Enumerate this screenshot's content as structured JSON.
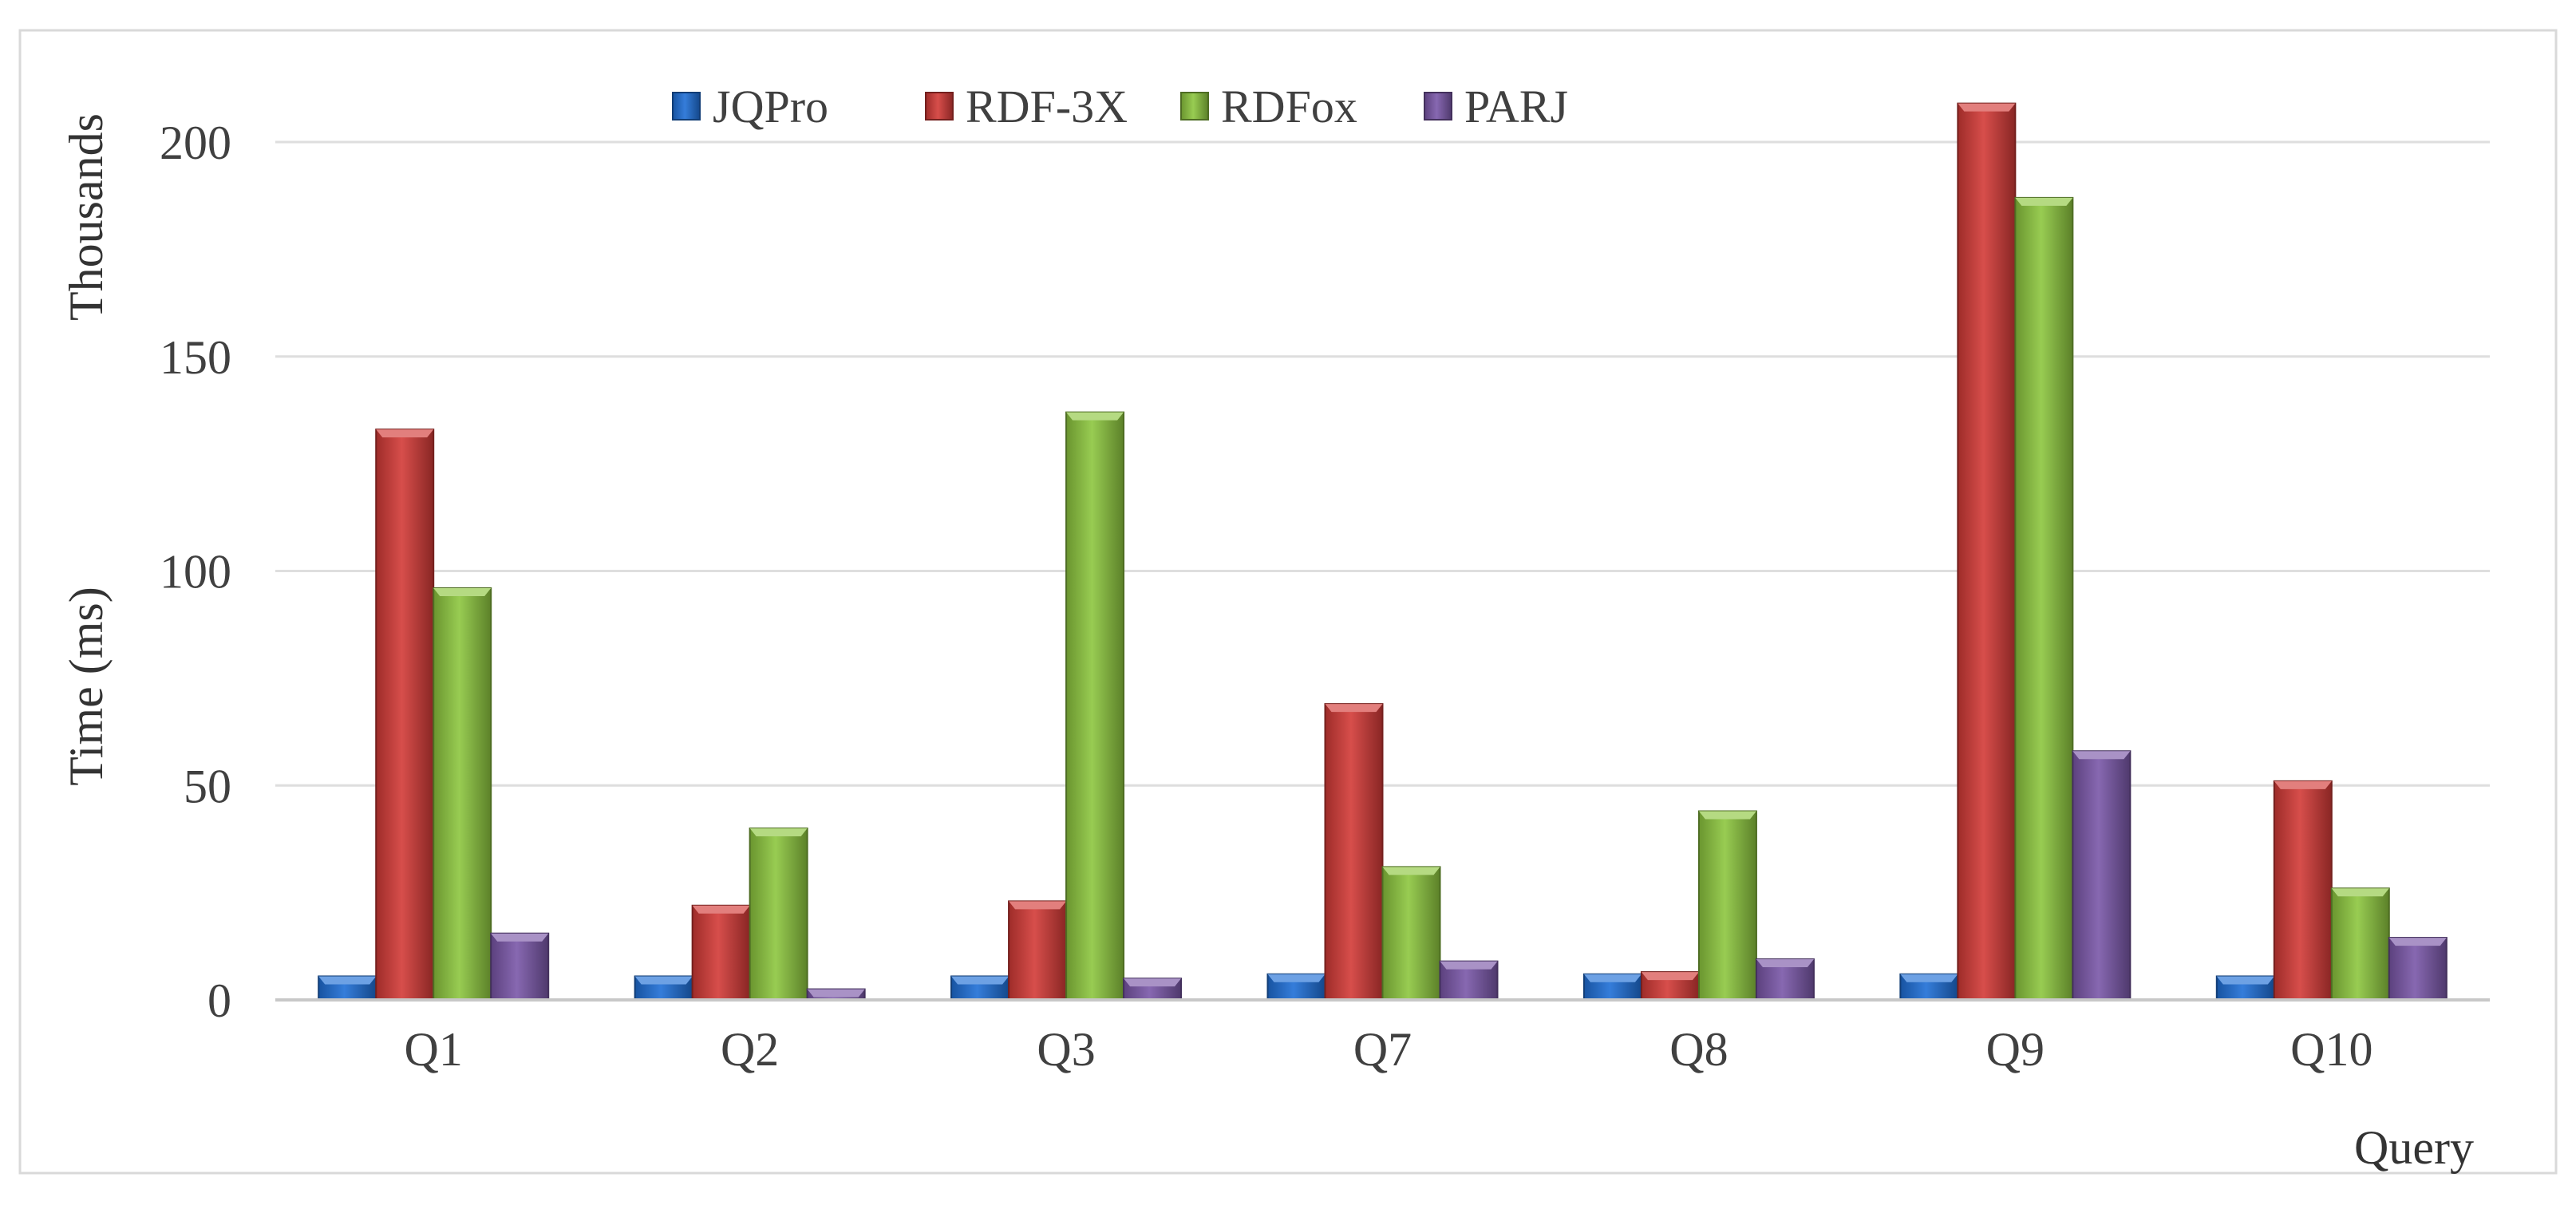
{
  "chart_data": {
    "type": "bar",
    "title": "",
    "xlabel": "Query",
    "ylabel": "Time (ms)",
    "yunit_label": "Thousands",
    "categories": [
      "Q1",
      "Q2",
      "Q3",
      "Q7",
      "Q8",
      "Q9",
      "Q10"
    ],
    "ylim": [
      0,
      200
    ],
    "yticks": [
      0,
      50,
      100,
      150,
      200
    ],
    "grid": true,
    "legend_position": "top-center",
    "series": [
      {
        "name": "JQPro",
        "color": "#1F6FD6",
        "values": [
          5.5,
          5.5,
          5.5,
          6,
          6,
          6,
          5.5
        ]
      },
      {
        "name": "RDF-3X",
        "color": "#D23A37",
        "values": [
          133,
          22,
          23,
          69,
          6.5,
          209,
          51
        ]
      },
      {
        "name": "RDFox",
        "color": "#8DC63F",
        "values": [
          96,
          40,
          137,
          31,
          44,
          187,
          26
        ]
      },
      {
        "name": "PARJ",
        "color": "#7A57A8",
        "values": [
          15.5,
          2.5,
          5,
          9,
          9.5,
          58,
          14.5
        ]
      }
    ]
  }
}
